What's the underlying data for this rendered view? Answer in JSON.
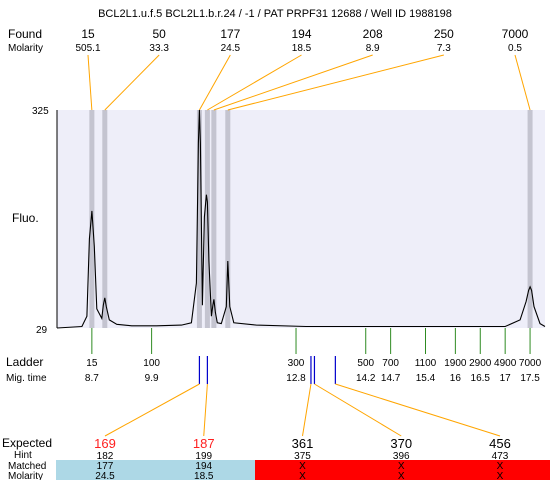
{
  "chart_data": {
    "type": "line",
    "title": "BCL2L1.u.f.5  BCL2L1.b.r.24 / -1 / PAT PRPF31 12688 / Well ID 1988198",
    "ylabel": "Fluo.",
    "ylim": [
      29,
      325
    ],
    "ytick_labels": [
      "325",
      "29"
    ],
    "row_labels": {
      "found": "Found",
      "molarity": "Molarity",
      "ladder": "Ladder",
      "mig_time": "Mig. time",
      "expected": "Expected",
      "hint": "Hint",
      "matched": "Matched",
      "molarity_bottom": "Molarity"
    },
    "found_peaks": [
      {
        "size": "15",
        "molarity": "505.1",
        "time": 8.7
      },
      {
        "size": "50",
        "molarity": "33.3",
        "time": 8.96
      },
      {
        "size": "177",
        "molarity": "24.5",
        "time": 10.86
      },
      {
        "size": "194",
        "molarity": "18.5",
        "time": 11.02
      },
      {
        "size": "208",
        "molarity": "8.9",
        "time": 11.15
      },
      {
        "size": "250",
        "molarity": "7.3",
        "time": 11.43
      },
      {
        "size": "7000",
        "molarity": "0.5",
        "time": 17.5
      }
    ],
    "ladder": [
      {
        "size": "15",
        "time": "8.7"
      },
      {
        "size": "100",
        "time": "9.9"
      },
      {
        "size": "300",
        "time": "12.8"
      },
      {
        "size": "500",
        "time": "14.2"
      },
      {
        "size": "700",
        "time": "14.7"
      },
      {
        "size": "1100",
        "time": "15.4"
      },
      {
        "size": "1900",
        "time": "16"
      },
      {
        "size": "2900",
        "time": "16.5"
      },
      {
        "size": "4900",
        "time": "17"
      },
      {
        "size": "7000",
        "time": "17.5"
      }
    ],
    "expected": [
      {
        "size": "169",
        "hint": "182",
        "matched": "177",
        "molarity": "24.5",
        "status": "found",
        "time": 10.86
      },
      {
        "size": "187",
        "hint": "199",
        "matched": "194",
        "molarity": "18.5",
        "status": "found",
        "time": 11.02
      },
      {
        "size": "361",
        "hint": "375",
        "matched": "X",
        "molarity": "X",
        "status": "missing",
        "time": 13.1
      },
      {
        "size": "370",
        "hint": "396",
        "matched": "X",
        "molarity": "X",
        "status": "missing",
        "time": 13.17
      },
      {
        "size": "456",
        "hint": "473",
        "matched": "X",
        "molarity": "X",
        "status": "missing",
        "time": 13.59
      }
    ],
    "trace": {
      "x": [
        8.0,
        8.5,
        8.6,
        8.65,
        8.7,
        8.75,
        8.8,
        8.9,
        8.93,
        8.96,
        8.99,
        9.05,
        9.2,
        9.5,
        10.0,
        10.5,
        10.7,
        10.8,
        10.84,
        10.86,
        10.88,
        10.92,
        10.96,
        11.0,
        11.02,
        11.05,
        11.1,
        11.13,
        11.15,
        11.18,
        11.22,
        11.3,
        11.4,
        11.43,
        11.47,
        11.55,
        12.0,
        13.0,
        14.0,
        15.0,
        16.0,
        17.0,
        17.3,
        17.42,
        17.47,
        17.5,
        17.53,
        17.58,
        17.7,
        17.8
      ],
      "y": [
        29,
        31,
        45,
        150,
        188,
        140,
        55,
        42,
        60,
        70,
        58,
        40,
        34,
        32,
        32,
        33,
        36,
        90,
        280,
        325,
        280,
        60,
        180,
        210,
        200,
        120,
        45,
        60,
        68,
        50,
        36,
        35,
        58,
        120,
        58,
        36,
        33,
        31,
        31,
        31,
        31,
        31,
        40,
        65,
        80,
        85,
        80,
        58,
        35,
        31
      ]
    },
    "colors": {
      "plot_bg": "#eeeef9",
      "band": "#c4c4d0",
      "leader": "#ffa500",
      "ladder_tick": "#2e8b22",
      "marker": "#0000cc",
      "expected_found_text": "#ff2020",
      "matched_ok_bg": "#add8e6",
      "matched_missing_bg": "#ff0000"
    }
  }
}
